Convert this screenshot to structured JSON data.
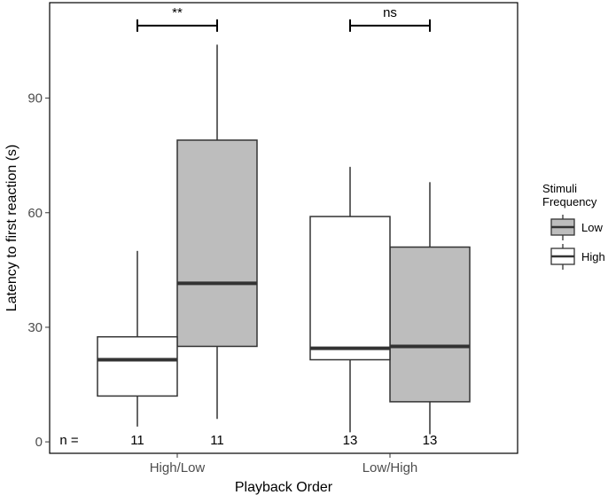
{
  "chart_data": {
    "type": "boxplot",
    "xlabel": "Playback Order",
    "ylabel": "Latency to first reaction (s)",
    "ylim": [
      -3,
      115
    ],
    "y_ticks": [
      0,
      30,
      60,
      90
    ],
    "categories": [
      "High/Low",
      "Low/High"
    ],
    "grid": false,
    "legend": {
      "title_lines": [
        "Stimuli",
        "Frequency"
      ],
      "position": "right",
      "entries": [
        {
          "label": "Low",
          "fill": "#bdbdbd"
        },
        {
          "label": "High",
          "fill": "#ffffff"
        }
      ]
    },
    "series": [
      {
        "name": "Low",
        "fill": "#bdbdbd",
        "boxes": [
          {
            "category": "High/Low",
            "min": 6,
            "q1": 25,
            "median": 41.5,
            "q3": 79,
            "max": 104
          },
          {
            "category": "Low/High",
            "min": 2,
            "q1": 10.5,
            "median": 25,
            "q3": 51,
            "max": 68
          }
        ]
      },
      {
        "name": "High",
        "fill": "#ffffff",
        "boxes": [
          {
            "category": "High/Low",
            "min": 4,
            "q1": 12,
            "median": 21.5,
            "q3": 27.5,
            "max": 50
          },
          {
            "category": "Low/High",
            "min": 2.5,
            "q1": 21.5,
            "median": 24.5,
            "q3": 59,
            "max": 72
          }
        ]
      }
    ],
    "box_order": [
      "High",
      "Low"
    ],
    "n_prefix": "n =",
    "n_counts": [
      {
        "category": "High/Low",
        "series": "High",
        "n": "11"
      },
      {
        "category": "High/Low",
        "series": "Low",
        "n": "11"
      },
      {
        "category": "Low/High",
        "series": "Low",
        "n": "13"
      },
      {
        "category": "Low/High",
        "series": "High",
        "n": "13"
      }
    ],
    "significance": [
      {
        "category": "High/Low",
        "label": "**",
        "y": 109
      },
      {
        "category": "Low/High",
        "label": "ns",
        "y": 109
      }
    ]
  }
}
